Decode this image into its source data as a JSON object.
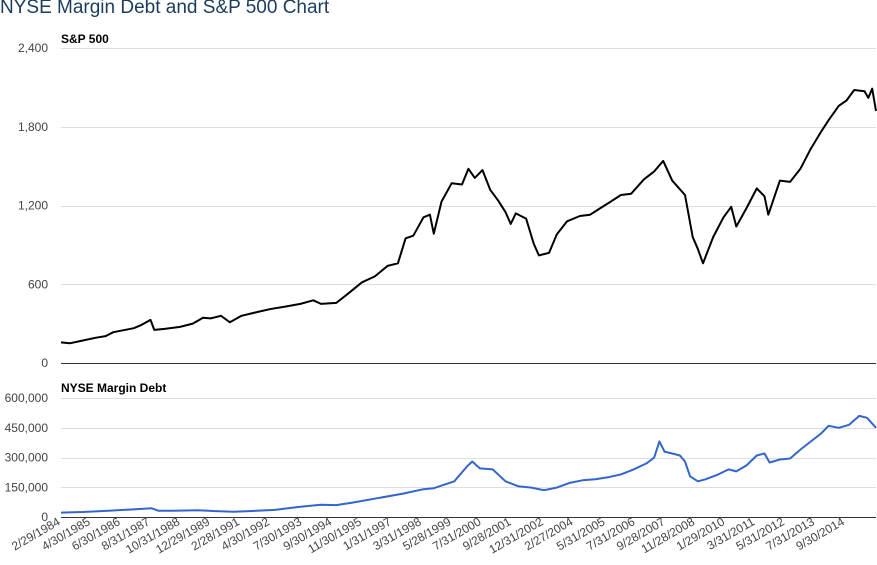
{
  "title": "NYSE Margin Debt and S&P 500 Chart",
  "colors": {
    "sp500": "#000000",
    "margin": "#3366cc",
    "grid": "#dedede",
    "title": "#1a3d5c"
  },
  "chart_data": [
    {
      "type": "line",
      "title": "S&P 500",
      "ylim": [
        0,
        2400
      ],
      "yticks": [
        "0",
        "600",
        "1,200",
        "1,800",
        "2,400"
      ],
      "ytick_values": [
        0,
        600,
        1200,
        1800,
        2400
      ],
      "x_range": [
        1984.16,
        2015.95
      ],
      "series": [
        {
          "name": "S&P 500",
          "color": "#000000",
          "points": [
            [
              1984.16,
              157
            ],
            [
              1984.5,
              150
            ],
            [
              1984.9,
              167
            ],
            [
              1985.5,
              192
            ],
            [
              1985.9,
              205
            ],
            [
              1986.2,
              235
            ],
            [
              1986.6,
              250
            ],
            [
              1987.0,
              265
            ],
            [
              1987.3,
              290
            ],
            [
              1987.65,
              328
            ],
            [
              1987.8,
              252
            ],
            [
              1988.2,
              260
            ],
            [
              1988.8,
              275
            ],
            [
              1989.3,
              300
            ],
            [
              1989.7,
              345
            ],
            [
              1990.0,
              340
            ],
            [
              1990.4,
              360
            ],
            [
              1990.75,
              310
            ],
            [
              1991.2,
              360
            ],
            [
              1991.8,
              388
            ],
            [
              1992.3,
              410
            ],
            [
              1992.9,
              430
            ],
            [
              1993.5,
              450
            ],
            [
              1994.0,
              478
            ],
            [
              1994.3,
              450
            ],
            [
              1994.9,
              458
            ],
            [
              1995.3,
              520
            ],
            [
              1995.9,
              615
            ],
            [
              1996.4,
              660
            ],
            [
              1996.9,
              740
            ],
            [
              1997.3,
              760
            ],
            [
              1997.6,
              950
            ],
            [
              1997.9,
              970
            ],
            [
              1998.3,
              1110
            ],
            [
              1998.55,
              1130
            ],
            [
              1998.7,
              985
            ],
            [
              1999.0,
              1230
            ],
            [
              1999.4,
              1370
            ],
            [
              1999.8,
              1360
            ],
            [
              2000.05,
              1480
            ],
            [
              2000.3,
              1410
            ],
            [
              2000.6,
              1470
            ],
            [
              2000.9,
              1320
            ],
            [
              2001.2,
              1240
            ],
            [
              2001.5,
              1150
            ],
            [
              2001.7,
              1060
            ],
            [
              2001.9,
              1140
            ],
            [
              2002.3,
              1100
            ],
            [
              2002.6,
              910
            ],
            [
              2002.8,
              820
            ],
            [
              2003.2,
              840
            ],
            [
              2003.5,
              980
            ],
            [
              2003.9,
              1080
            ],
            [
              2004.4,
              1120
            ],
            [
              2004.8,
              1130
            ],
            [
              2005.2,
              1180
            ],
            [
              2005.6,
              1230
            ],
            [
              2006.0,
              1280
            ],
            [
              2006.4,
              1290
            ],
            [
              2006.9,
              1400
            ],
            [
              2007.3,
              1460
            ],
            [
              2007.65,
              1540
            ],
            [
              2008.0,
              1390
            ],
            [
              2008.5,
              1280
            ],
            [
              2008.8,
              960
            ],
            [
              2009.0,
              870
            ],
            [
              2009.2,
              760
            ],
            [
              2009.6,
              960
            ],
            [
              2010.0,
              1110
            ],
            [
              2010.3,
              1190
            ],
            [
              2010.5,
              1040
            ],
            [
              2010.9,
              1180
            ],
            [
              2011.3,
              1330
            ],
            [
              2011.6,
              1270
            ],
            [
              2011.75,
              1130
            ],
            [
              2012.2,
              1390
            ],
            [
              2012.6,
              1380
            ],
            [
              2013.0,
              1480
            ],
            [
              2013.4,
              1630
            ],
            [
              2013.8,
              1760
            ],
            [
              2014.1,
              1850
            ],
            [
              2014.5,
              1960
            ],
            [
              2014.8,
              2000
            ],
            [
              2015.1,
              2080
            ],
            [
              2015.5,
              2070
            ],
            [
              2015.65,
              2020
            ],
            [
              2015.8,
              2090
            ],
            [
              2015.95,
              1920
            ]
          ]
        }
      ]
    },
    {
      "type": "line",
      "title": "NYSE Margin Debt",
      "ylim": [
        0,
        600000
      ],
      "yticks": [
        "0",
        "150,000",
        "300,000",
        "450,000",
        "600,000"
      ],
      "ytick_values": [
        0,
        150000,
        300000,
        450000,
        600000
      ],
      "x_range": [
        1984.16,
        2015.95
      ],
      "series": [
        {
          "name": "NYSE Margin Debt",
          "color": "#3366cc",
          "points": [
            [
              1984.16,
              22000
            ],
            [
              1985.0,
              25000
            ],
            [
              1986.0,
              32000
            ],
            [
              1986.9,
              38000
            ],
            [
              1987.7,
              44000
            ],
            [
              1987.95,
              32000
            ],
            [
              1988.5,
              32000
            ],
            [
              1989.5,
              34000
            ],
            [
              1990.2,
              30000
            ],
            [
              1990.9,
              26000
            ],
            [
              1991.5,
              30000
            ],
            [
              1992.5,
              36000
            ],
            [
              1993.5,
              52000
            ],
            [
              1994.3,
              62000
            ],
            [
              1994.9,
              60000
            ],
            [
              1995.5,
              72000
            ],
            [
              1996.5,
              95000
            ],
            [
              1997.5,
              118000
            ],
            [
              1998.3,
              140000
            ],
            [
              1998.7,
              145000
            ],
            [
              1999.5,
              180000
            ],
            [
              2000.0,
              255000
            ],
            [
              2000.2,
              280000
            ],
            [
              2000.5,
              245000
            ],
            [
              2001.0,
              240000
            ],
            [
              2001.5,
              180000
            ],
            [
              2002.0,
              155000
            ],
            [
              2002.5,
              148000
            ],
            [
              2003.0,
              135000
            ],
            [
              2003.5,
              148000
            ],
            [
              2004.0,
              172000
            ],
            [
              2004.5,
              185000
            ],
            [
              2005.0,
              190000
            ],
            [
              2005.5,
              200000
            ],
            [
              2006.0,
              215000
            ],
            [
              2006.5,
              240000
            ],
            [
              2007.0,
              270000
            ],
            [
              2007.3,
              300000
            ],
            [
              2007.5,
              381000
            ],
            [
              2007.7,
              330000
            ],
            [
              2008.0,
              320000
            ],
            [
              2008.3,
              310000
            ],
            [
              2008.5,
              280000
            ],
            [
              2008.7,
              205000
            ],
            [
              2009.0,
              180000
            ],
            [
              2009.3,
              190000
            ],
            [
              2009.8,
              215000
            ],
            [
              2010.2,
              240000
            ],
            [
              2010.5,
              230000
            ],
            [
              2010.9,
              260000
            ],
            [
              2011.3,
              310000
            ],
            [
              2011.6,
              320000
            ],
            [
              2011.8,
              275000
            ],
            [
              2012.2,
              290000
            ],
            [
              2012.6,
              295000
            ],
            [
              2013.0,
              340000
            ],
            [
              2013.4,
              380000
            ],
            [
              2013.8,
              420000
            ],
            [
              2014.1,
              460000
            ],
            [
              2014.5,
              450000
            ],
            [
              2014.9,
              465000
            ],
            [
              2015.3,
              510000
            ],
            [
              2015.6,
              500000
            ],
            [
              2015.95,
              450000
            ]
          ]
        }
      ]
    }
  ],
  "x_axis": {
    "labels": [
      "2/29/1984",
      "4/30/1985",
      "6/30/1986",
      "8/31/1987",
      "10/31/1988",
      "12/29/1989",
      "2/28/1991",
      "4/30/1992",
      "7/30/1993",
      "9/30/1994",
      "11/30/1995",
      "1/31/1997",
      "3/31/1998",
      "5/28/1999",
      "7/31/2000",
      "9/28/2001",
      "12/31/2002",
      "2/27/2004",
      "5/31/2005",
      "7/31/2006",
      "9/28/2007",
      "11/28/2008",
      "1/29/2010",
      "3/31/2011",
      "5/31/2012",
      "7/31/2013",
      "9/30/2014"
    ],
    "label_positions": [
      1984.16,
      1985.33,
      1986.5,
      1987.66,
      1988.83,
      1990.0,
      1991.16,
      1992.33,
      1993.58,
      1994.75,
      1995.91,
      1997.08,
      1998.25,
      1999.41,
      2000.58,
      2001.75,
      2003.0,
      2004.16,
      2005.41,
      2006.58,
      2007.75,
      2008.91,
      2010.08,
      2011.25,
      2012.41,
      2013.58,
      2014.75
    ]
  }
}
